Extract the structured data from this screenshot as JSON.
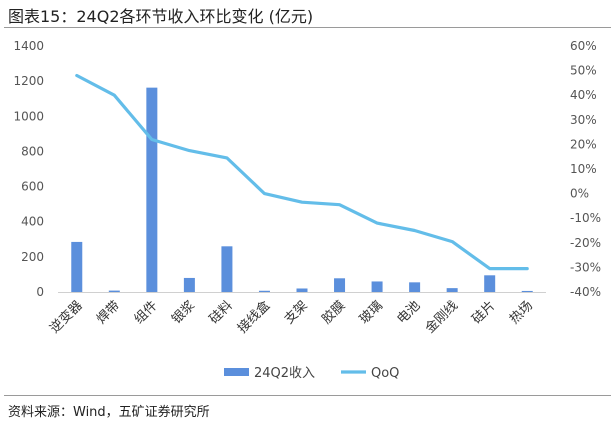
{
  "title": "图表15：24Q2各环节收入环比变化 (亿元)",
  "source": "资料来源：Wind，五矿证券研究所",
  "colors": {
    "bar": "#5b8fdc",
    "line": "#63bde9",
    "axis_text": "#555555"
  },
  "chart_data": {
    "type": "bar+line",
    "categories": [
      "逆变器",
      "焊带",
      "组件",
      "银浆",
      "硅料",
      "接线盒",
      "支架",
      "胶膜",
      "玻璃",
      "电池",
      "金刚线",
      "硅片",
      "热场"
    ],
    "series": [
      {
        "name": "24Q2收入",
        "type": "bar",
        "axis": "left",
        "values": [
          285,
          8,
          1163,
          80,
          260,
          7,
          20,
          78,
          60,
          55,
          22,
          95,
          6
        ]
      },
      {
        "name": "QoQ",
        "type": "line",
        "axis": "right",
        "values": [
          48,
          40,
          22,
          17.5,
          14.5,
          0,
          -3.5,
          -4.5,
          -12,
          -15,
          -19.5,
          -30.5,
          -30.5
        ]
      }
    ],
    "y_left": {
      "lim": [
        0,
        1400
      ],
      "ticks": [
        "0",
        "200",
        "400",
        "600",
        "800",
        "1000",
        "1200",
        "1400"
      ]
    },
    "y_right": {
      "lim": [
        -40,
        60
      ],
      "ticks": [
        "-40%",
        "-30%",
        "-20%",
        "-10%",
        "0%",
        "10%",
        "20%",
        "30%",
        "40%",
        "50%",
        "60%"
      ]
    },
    "legend": "bottom",
    "grid": false
  }
}
